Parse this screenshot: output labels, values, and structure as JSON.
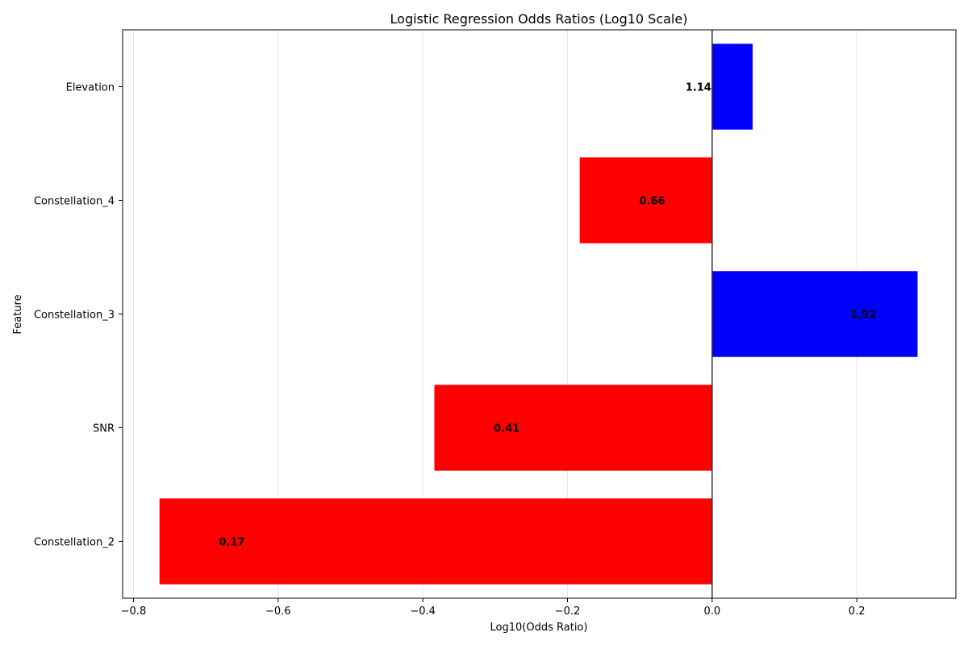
{
  "chart_data": {
    "type": "bar",
    "orientation": "horizontal",
    "title": "Logistic Regression Odds Ratios (Log10 Scale)",
    "xlabel": "Log10(Odds Ratio)",
    "ylabel": "Feature",
    "categories": [
      "Constellation_2",
      "SNR",
      "Constellation_3",
      "Constellation_4",
      "Elevation"
    ],
    "values": [
      -0.764,
      -0.384,
      0.284,
      -0.183,
      0.056
    ],
    "data_labels": [
      "0.17",
      "0.41",
      "1.92",
      "0.66",
      "1.14"
    ],
    "bar_colors": [
      "#ff0000",
      "#ff0000",
      "#0000ff",
      "#ff0000",
      "#0000ff"
    ],
    "xlim": [
      -0.815,
      0.337
    ],
    "xticks": [
      -0.8,
      -0.6,
      -0.4,
      -0.2,
      0.0,
      0.2
    ],
    "xtick_labels": [
      "−0.8",
      "−0.6",
      "−0.4",
      "−0.2",
      "0.0",
      "0.2"
    ],
    "grid": "x-axis vertical lines",
    "reference_line": 0
  }
}
